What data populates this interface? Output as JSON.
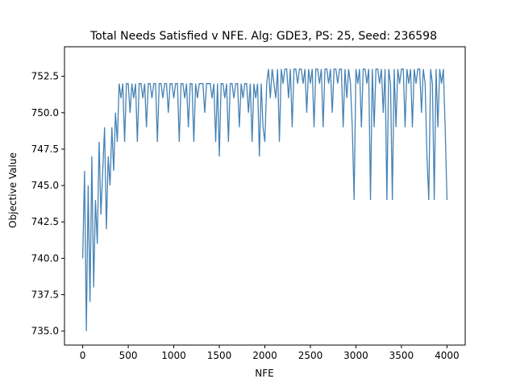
{
  "chart_data": {
    "type": "line",
    "title": "Total Needs Satisfied v NFE. Alg: GDE3, PS: 25, Seed: 236598",
    "x_label": "NFE",
    "y_label": "Objective Value",
    "xlim": [
      -200,
      4200
    ],
    "ylim": [
      734.04,
      754.53
    ],
    "xticks": [
      0,
      500,
      1000,
      1500,
      2000,
      2500,
      3000,
      3500,
      4000
    ],
    "yticks": [
      {
        "value": 735,
        "label": "735.0"
      },
      {
        "value": 737.5,
        "label": "737.5"
      },
      {
        "value": 740,
        "label": "740.0"
      },
      {
        "value": 742.5,
        "label": "742.5"
      },
      {
        "value": 745,
        "label": "745.0"
      },
      {
        "value": 747.5,
        "label": "747.5"
      },
      {
        "value": 750,
        "label": "750.0"
      },
      {
        "value": 752.5,
        "label": "752.5"
      }
    ],
    "grid": false,
    "series": [
      {
        "color": "#4682b4",
        "x": [
          0,
          20,
          40,
          60,
          80,
          100,
          120,
          140,
          160,
          180,
          200,
          220,
          240,
          260,
          280,
          300,
          320,
          340,
          360,
          380,
          400,
          420,
          440,
          460,
          480,
          500,
          520,
          540,
          560,
          580,
          600,
          620,
          640,
          660,
          680,
          700,
          720,
          740,
          760,
          780,
          800,
          820,
          840,
          860,
          880,
          900,
          920,
          940,
          960,
          980,
          1000,
          1020,
          1040,
          1060,
          1080,
          1100,
          1120,
          1140,
          1160,
          1180,
          1200,
          1220,
          1240,
          1260,
          1280,
          1300,
          1320,
          1340,
          1360,
          1380,
          1400,
          1420,
          1440,
          1460,
          1480,
          1500,
          1520,
          1540,
          1560,
          1580,
          1600,
          1620,
          1640,
          1660,
          1680,
          1700,
          1720,
          1740,
          1760,
          1780,
          1800,
          1820,
          1840,
          1860,
          1880,
          1900,
          1920,
          1940,
          1960,
          1980,
          2000,
          2020,
          2040,
          2060,
          2080,
          2100,
          2120,
          2140,
          2160,
          2180,
          2200,
          2220,
          2240,
          2260,
          2280,
          2300,
          2320,
          2340,
          2360,
          2380,
          2400,
          2420,
          2440,
          2460,
          2480,
          2500,
          2520,
          2540,
          2560,
          2580,
          2600,
          2620,
          2640,
          2660,
          2680,
          2700,
          2720,
          2740,
          2760,
          2780,
          2800,
          2820,
          2840,
          2860,
          2880,
          2900,
          2920,
          2940,
          2960,
          2980,
          3000,
          3020,
          3040,
          3060,
          3080,
          3100,
          3120,
          3140,
          3160,
          3180,
          3200,
          3220,
          3240,
          3260,
          3280,
          3300,
          3320,
          3340,
          3360,
          3380,
          3400,
          3420,
          3440,
          3460,
          3480,
          3500,
          3520,
          3540,
          3560,
          3580,
          3600,
          3620,
          3640,
          3660,
          3680,
          3700,
          3720,
          3740,
          3760,
          3780,
          3800,
          3820,
          3840,
          3860,
          3880,
          3900,
          3920,
          3940,
          3960,
          3980,
          4000
        ],
        "values": [
          740,
          746,
          735,
          745,
          737,
          747,
          738,
          744,
          741,
          748,
          743,
          746,
          749,
          742,
          747,
          745,
          749,
          746,
          750,
          748,
          752,
          751,
          752,
          748,
          752,
          752,
          750,
          752,
          751,
          752,
          748,
          752,
          752,
          751,
          752,
          749,
          752,
          752,
          751,
          752,
          752,
          748,
          752,
          752,
          751,
          752,
          752,
          750,
          752,
          752,
          751,
          752,
          752,
          748,
          752,
          752,
          751,
          752,
          749,
          752,
          752,
          748,
          752,
          751,
          752,
          752,
          752,
          750,
          752,
          752,
          752,
          751,
          752,
          748,
          752,
          747,
          752,
          752,
          751,
          752,
          748,
          752,
          752,
          751,
          752,
          752,
          749,
          752,
          751,
          752,
          752,
          750,
          752,
          748,
          752,
          751,
          752,
          747,
          752,
          749,
          748,
          752,
          753,
          751,
          753,
          752,
          751,
          753,
          748,
          753,
          752,
          753,
          753,
          751,
          753,
          749,
          753,
          753,
          752,
          753,
          753,
          752,
          753,
          750,
          753,
          752,
          753,
          749,
          753,
          753,
          752,
          753,
          749,
          753,
          753,
          752,
          753,
          750,
          753,
          753,
          752,
          753,
          753,
          749,
          753,
          751,
          753,
          752,
          749,
          744,
          753,
          752,
          753,
          749,
          753,
          753,
          752,
          753,
          744,
          753,
          749,
          753,
          753,
          752,
          753,
          750,
          753,
          744,
          753,
          752,
          744,
          753,
          749,
          753,
          752,
          753,
          753,
          749,
          753,
          752,
          753,
          749,
          753,
          752,
          753,
          753,
          750,
          753,
          752,
          747,
          744,
          753,
          752,
          744,
          753,
          749,
          753,
          752,
          753,
          749,
          744
        ]
      }
    ]
  }
}
